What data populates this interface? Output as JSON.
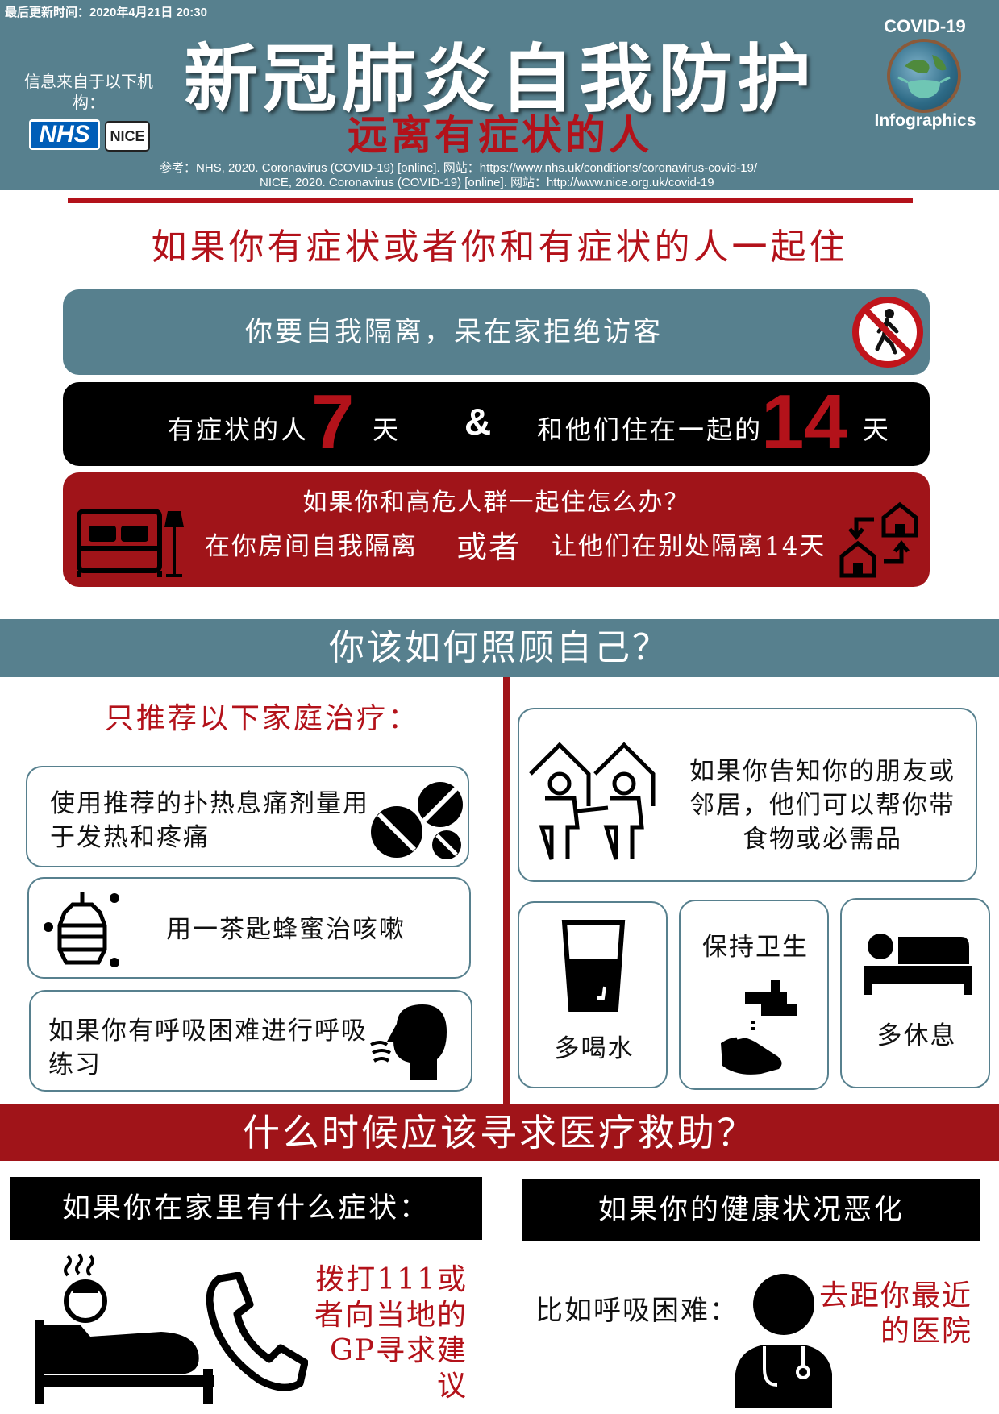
{
  "header": {
    "last_updated": "最后更新时间：2020年4月21日 20:30",
    "title": "新冠肺炎自我防护",
    "subtitle": "远离有症状的人",
    "source_label": "信息来自于以下机构：",
    "logo_nhs": "NHS",
    "logo_nice": "NICE",
    "badge_top": "COVID-19",
    "badge_bottom": "Infographics",
    "ref_line1": "参考：NHS, 2020. Coronavirus (COVID-19) [online]. 网站：https://www.nhs.uk/conditions/coronavirus-covid-19/",
    "ref_line2": "NICE, 2020. Coronavirus (COVID-19) [online]. 网站：http://www.nice.org.uk/covid-19"
  },
  "section1": {
    "heading": "如果你有症状或者你和有症状的人一起住",
    "isolate_text": "你要自我隔离，呆在家拒绝访客",
    "days": {
      "label_symptoms": "有症状的人",
      "num_symptoms": "7",
      "unit1": "天",
      "ampersand": "&",
      "label_household": "和他们住在一起的",
      "num_household": "14",
      "unit2": "天"
    },
    "high_risk": {
      "question": "如果你和高危人群一起住怎么办？",
      "option1": "在你房间自我隔离",
      "or": "或者",
      "option2": "让他们在别处隔离14天"
    }
  },
  "section2": {
    "heading": "你该如何照顾自己？",
    "home_treatment_heading": "只推荐以下家庭治疗：",
    "items": [
      {
        "text": "使用推荐的扑热息痛剂量用于发热和疼痛"
      },
      {
        "text": "用一茶匙蜂蜜治咳嗽"
      },
      {
        "text": "如果你有呼吸困难进行呼吸练习"
      }
    ],
    "friends_text": "如果你告知你的朋友或邻居，他们可以帮你带食物或必需品",
    "drink_label": "多喝水",
    "hygiene_label": "保持卫生",
    "rest_label": "多休息"
  },
  "section3": {
    "heading": "什么时候应该寻求医疗救助？",
    "left_bar": "如果你在家里有什么症状：",
    "left_action": "拨打111或者向当地的GP寻求建议",
    "right_bar": "如果你的健康状况恶化",
    "right_example": "比如呼吸困难：",
    "right_action": "去距你最近的医院"
  },
  "colors": {
    "teal": "#57808e",
    "red": "#b3121a",
    "dark_red": "#a01419",
    "black": "#000000"
  }
}
